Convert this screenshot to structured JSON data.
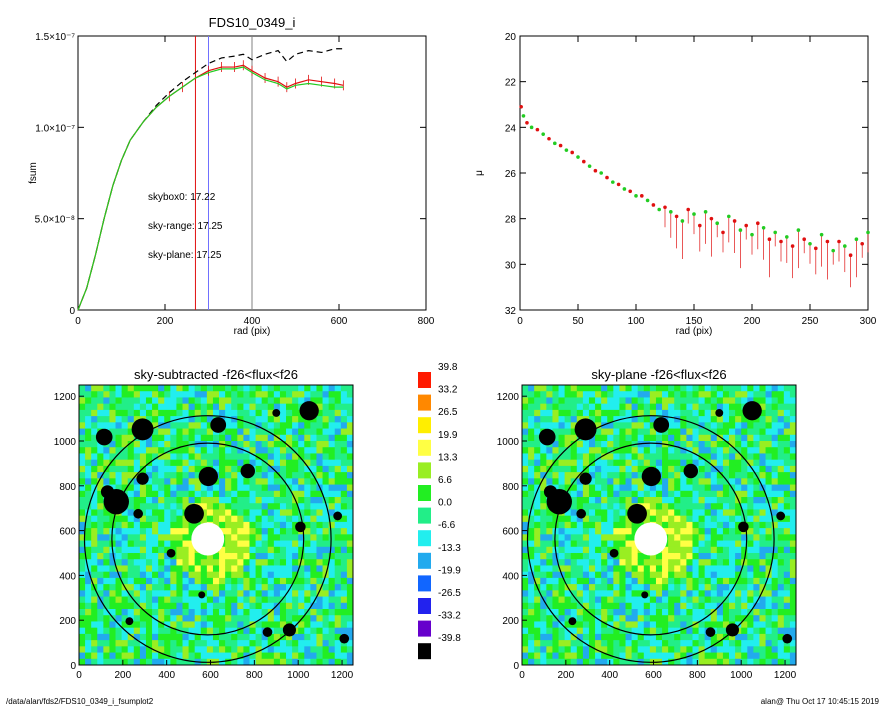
{
  "footer": {
    "path": "/data/alan/fds2/FDS10_0349_i_fsumplot2",
    "stamp": "alan@  Thu Oct 17 10:45:15 2019"
  },
  "colors": {
    "sky_range": "#e01010",
    "sky_plane": "#22cc22",
    "box": "#000000"
  },
  "chart_data": [
    {
      "type": "line",
      "title": "FDS10_0349_i",
      "xlabel": "rad (pix)",
      "ylabel": "fsum",
      "xlim": [
        0,
        800
      ],
      "ylim": [
        0,
        1.5e-07
      ],
      "xticks": [
        "0",
        "200",
        "400",
        "600",
        "800"
      ],
      "yticks": [
        "0",
        "5.0×10⁻⁸",
        "1.0×10⁻⁷",
        "1.5×10⁻⁷"
      ],
      "annotations": [
        {
          "text": "skybox0: 17.22",
          "color": "#000000"
        },
        {
          "text": "sky-range: 17.25",
          "color": "#e01010"
        },
        {
          "text": "sky-plane: 17.25",
          "color": "#22cc22"
        }
      ],
      "vlines": [
        {
          "x": 270,
          "color": "#e01010"
        },
        {
          "x": 300,
          "color": "#7070ff"
        },
        {
          "x": 400,
          "color": "#808080"
        }
      ],
      "series": [
        {
          "x": [
            0,
            20,
            40,
            60,
            80,
            100,
            120,
            150,
            180,
            210,
            240,
            270,
            300,
            330,
            360,
            380,
            400,
            430,
            460,
            480,
            500,
            530,
            560,
            590,
            610
          ],
          "values": [
            0,
            1.2e-08,
            3e-08,
            5e-08,
            6.8e-08,
            8.2e-08,
            9.3e-08,
            1.03e-07,
            1.12e-07,
            1.19e-07,
            1.25e-07,
            1.3e-07,
            1.35e-07,
            1.38e-07,
            1.39e-07,
            1.4e-07,
            1.37e-07,
            1.4e-07,
            1.42e-07,
            1.36e-07,
            1.4e-07,
            1.42e-07,
            1.41e-07,
            1.43e-07,
            1.43e-07
          ],
          "style": "dashed",
          "color": "#000000"
        },
        {
          "x": [
            0,
            20,
            40,
            60,
            80,
            100,
            120,
            150,
            180,
            210,
            240,
            270,
            300,
            330,
            360,
            380,
            400,
            430,
            460,
            480,
            500,
            530,
            560,
            590,
            610
          ],
          "values": [
            0,
            1.2e-08,
            3e-08,
            5e-08,
            6.8e-08,
            8.2e-08,
            9.3e-08,
            1.03e-07,
            1.11e-07,
            1.17e-07,
            1.22e-07,
            1.27e-07,
            1.31e-07,
            1.33e-07,
            1.33e-07,
            1.34e-07,
            1.31e-07,
            1.27e-07,
            1.25e-07,
            1.22e-07,
            1.24e-07,
            1.26e-07,
            1.25e-07,
            1.24e-07,
            1.23e-07
          ],
          "style": "solid",
          "color": "#e01010"
        },
        {
          "x": [
            0,
            20,
            40,
            60,
            80,
            100,
            120,
            150,
            180,
            210,
            240,
            270,
            300,
            330,
            360,
            380,
            400,
            430,
            460,
            480,
            500,
            530,
            560,
            590,
            610
          ],
          "values": [
            0,
            1.2e-08,
            3e-08,
            5e-08,
            6.8e-08,
            8.2e-08,
            9.3e-08,
            1.03e-07,
            1.11e-07,
            1.17e-07,
            1.22e-07,
            1.27e-07,
            1.3e-07,
            1.32e-07,
            1.32e-07,
            1.33e-07,
            1.3e-07,
            1.26e-07,
            1.24e-07,
            1.21e-07,
            1.23e-07,
            1.24e-07,
            1.23e-07,
            1.22e-07,
            1.22e-07
          ],
          "style": "solid",
          "color": "#22cc22"
        }
      ]
    },
    {
      "type": "scatter",
      "xlabel": "rad (pix)",
      "ylabel": "μ",
      "xlim": [
        0,
        300
      ],
      "ylim": [
        32,
        20
      ],
      "xticks": [
        "0",
        "50",
        "100",
        "150",
        "200",
        "250",
        "300"
      ],
      "yticks": [
        "20",
        "22",
        "24",
        "26",
        "28",
        "30",
        "32"
      ],
      "points": [
        [
          1,
          23.1
        ],
        [
          3,
          23.5
        ],
        [
          6,
          23.8
        ],
        [
          10,
          24.0
        ],
        [
          15,
          24.1
        ],
        [
          20,
          24.3
        ],
        [
          25,
          24.5
        ],
        [
          30,
          24.7
        ],
        [
          35,
          24.8
        ],
        [
          40,
          25.0
        ],
        [
          45,
          25.1
        ],
        [
          50,
          25.3
        ],
        [
          55,
          25.5
        ],
        [
          60,
          25.7
        ],
        [
          65,
          25.9
        ],
        [
          70,
          26.0
        ],
        [
          75,
          26.2
        ],
        [
          80,
          26.4
        ],
        [
          85,
          26.5
        ],
        [
          90,
          26.7
        ],
        [
          95,
          26.8
        ],
        [
          100,
          27.0
        ],
        [
          105,
          27.0
        ],
        [
          110,
          27.2
        ],
        [
          115,
          27.4
        ],
        [
          120,
          27.6
        ],
        [
          125,
          27.5
        ],
        [
          130,
          27.7
        ],
        [
          135,
          27.9
        ],
        [
          140,
          28.1
        ],
        [
          145,
          27.6
        ],
        [
          150,
          27.8
        ],
        [
          155,
          28.3
        ],
        [
          160,
          27.7
        ],
        [
          165,
          28.0
        ],
        [
          170,
          28.2
        ],
        [
          175,
          28.6
        ],
        [
          180,
          27.9
        ],
        [
          185,
          28.1
        ],
        [
          190,
          28.5
        ],
        [
          195,
          28.3
        ],
        [
          200,
          28.7
        ],
        [
          205,
          28.2
        ],
        [
          210,
          28.4
        ],
        [
          215,
          28.9
        ],
        [
          220,
          28.6
        ],
        [
          225,
          29.0
        ],
        [
          230,
          28.8
        ],
        [
          235,
          29.2
        ],
        [
          240,
          28.5
        ],
        [
          245,
          28.9
        ],
        [
          250,
          29.1
        ],
        [
          255,
          29.3
        ],
        [
          260,
          28.7
        ],
        [
          265,
          29.0
        ],
        [
          270,
          29.4
        ],
        [
          275,
          29.0
        ],
        [
          280,
          29.2
        ],
        [
          285,
          29.6
        ],
        [
          290,
          28.9
        ],
        [
          295,
          29.1
        ],
        [
          300,
          28.6
        ]
      ],
      "colors": [
        "#e01010",
        "#22cc22"
      ]
    },
    {
      "type": "heatmap",
      "title": "sky-subtracted -f26<flux<f26",
      "xlim": [
        0,
        1250
      ],
      "ylim": [
        0,
        1250
      ],
      "xticks": [
        "0",
        "200",
        "400",
        "600",
        "800",
        "1000",
        "1200"
      ],
      "yticks": [
        "0",
        "200",
        "400",
        "600",
        "800",
        "1000",
        "1200"
      ]
    },
    {
      "type": "heatmap",
      "title": "sky-plane -f26<flux<f26",
      "xlim": [
        0,
        1250
      ],
      "ylim": [
        0,
        1250
      ],
      "xticks": [
        "0",
        "200",
        "400",
        "600",
        "800",
        "1000",
        "1200"
      ],
      "yticks": [
        "0",
        "200",
        "400",
        "600",
        "800",
        "1000",
        "1200"
      ]
    }
  ],
  "colorbar": {
    "levels": [
      "39.8",
      "33.2",
      "26.5",
      "19.9",
      "13.3",
      "6.6",
      "0.0",
      "-6.6",
      "-13.3",
      "-19.9",
      "-26.5",
      "-33.2",
      "-39.8"
    ],
    "colors": [
      "#ff1a00",
      "#ff8800",
      "#ffee00",
      "#ffff44",
      "#99ee22",
      "#22ee22",
      "#22ee88",
      "#22eeee",
      "#22aaee",
      "#1166ff",
      "#2222ee",
      "#6600cc",
      "#000000"
    ]
  },
  "masks": [
    [
      170,
      745,
      58
    ],
    [
      115,
      1040,
      38
    ],
    [
      290,
      1075,
      50
    ],
    [
      770,
      885,
      33
    ],
    [
      635,
      1095,
      36
    ],
    [
      590,
      860,
      44
    ],
    [
      130,
      790,
      30
    ],
    [
      525,
      690,
      45
    ],
    [
      290,
      850,
      28
    ],
    [
      270,
      690,
      22
    ],
    [
      420,
      510,
      20
    ],
    [
      230,
      200,
      18
    ],
    [
      560,
      320,
      16
    ],
    [
      1010,
      630,
      24
    ],
    [
      1050,
      1160,
      44
    ],
    [
      1210,
      120,
      22
    ],
    [
      1180,
      680,
      20
    ],
    [
      860,
      150,
      22
    ],
    [
      900,
      1150,
      18
    ],
    [
      960,
      160,
      30
    ]
  ]
}
